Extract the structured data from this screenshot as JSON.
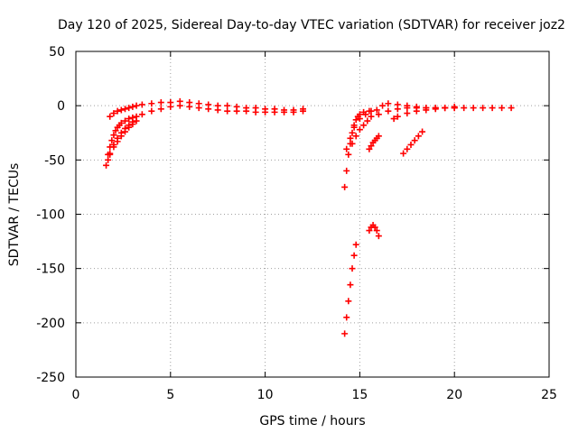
{
  "chart_data": {
    "type": "scatter",
    "title": "Day 120 of 2025, Sidereal Day-to-day VTEC variation (SDTVAR) for receiver joz2",
    "xlabel": "GPS time / hours",
    "ylabel": "SDTVAR / TECUs",
    "xlim": [
      0,
      25
    ],
    "ylim": [
      -250,
      50
    ],
    "xticks": [
      0,
      5,
      10,
      15,
      20,
      25
    ],
    "yticks": [
      -250,
      -200,
      -150,
      -100,
      -50,
      0,
      50
    ],
    "xtick_labels": [
      "0",
      "5",
      "10",
      "15",
      "20",
      "25"
    ],
    "ytick_labels": [
      "-250",
      "-200",
      "-150",
      "-100",
      "-50",
      "0",
      "50"
    ],
    "grid": true,
    "marker": "plus",
    "color": "#ff0000",
    "series": [
      {
        "x": [
          1.6,
          1.7,
          1.8,
          1.9,
          2.0,
          2.1,
          2.2,
          2.3,
          2.4,
          2.6,
          2.8,
          3.0,
          3.2,
          3.5,
          4.0,
          4.5,
          5.0,
          5.5,
          6.0,
          6.5,
          7.0,
          7.5,
          8.0,
          8.5,
          9.0,
          9.5,
          10.0,
          10.5,
          11.0,
          11.5,
          12.0
        ],
        "y": [
          -55,
          -45,
          -38,
          -32,
          -27,
          -23,
          -20,
          -18,
          -16,
          -14,
          -12,
          -11,
          -10,
          -8,
          -5,
          -3,
          -1,
          0,
          -1,
          -2,
          -3,
          -4,
          -5,
          -5,
          -5,
          -6,
          -6,
          -6,
          -6,
          -6,
          -5
        ]
      },
      {
        "x": [
          1.7,
          1.8,
          2.0,
          2.2,
          2.4,
          2.6,
          2.8,
          3.0
        ],
        "y": [
          -50,
          -44,
          -36,
          -30,
          -25,
          -21,
          -18,
          -15
        ]
      },
      {
        "x": [
          1.8,
          2.0,
          2.2,
          2.4,
          2.6,
          2.8,
          3.0,
          3.2
        ],
        "y": [
          -45,
          -38,
          -33,
          -28,
          -24,
          -20,
          -17,
          -14
        ]
      },
      {
        "x": [
          1.8,
          2.0,
          2.2,
          2.4,
          2.6,
          2.8,
          3.0,
          3.2,
          3.5,
          4.0,
          4.5,
          5.0,
          5.5,
          6.0,
          6.5,
          7.0,
          7.5,
          8.0,
          8.5,
          9.0,
          9.5,
          10.0,
          10.5,
          11.0,
          11.5,
          12.0
        ],
        "y": [
          -10,
          -7,
          -5,
          -4,
          -3,
          -2,
          -1,
          0,
          1,
          2,
          3,
          3,
          4,
          3,
          2,
          1,
          0,
          0,
          -1,
          -2,
          -2,
          -3,
          -3,
          -4,
          -4,
          -3
        ]
      },
      {
        "x": [
          14.2,
          14.3,
          14.4,
          14.5,
          14.6,
          14.7,
          14.8,
          14.9,
          15.0,
          15.2,
          15.5
        ],
        "y": [
          -75,
          -60,
          -45,
          -35,
          -25,
          -18,
          -13,
          -10,
          -8,
          -6,
          -5
        ]
      },
      {
        "x": [
          14.2,
          14.3,
          14.4,
          14.5,
          14.6,
          14.7,
          14.8
        ],
        "y": [
          -210,
          -195,
          -180,
          -165,
          -150,
          -138,
          -128
        ]
      },
      {
        "x": [
          14.3,
          14.5,
          14.7,
          15.0,
          15.3,
          15.6,
          15.9
        ],
        "y": [
          -40,
          -30,
          -20,
          -12,
          -8,
          -5,
          -4
        ]
      },
      {
        "x": [
          14.6,
          14.8,
          15.0,
          15.2,
          15.4,
          15.6
        ],
        "y": [
          -35,
          -28,
          -22,
          -18,
          -14,
          -10
        ]
      },
      {
        "x": [
          15.5,
          15.6,
          15.7,
          15.8,
          15.9,
          16.0
        ],
        "y": [
          -40,
          -37,
          -34,
          -32,
          -30,
          -28
        ]
      },
      {
        "x": [
          15.5,
          15.6,
          15.7,
          15.8,
          15.9,
          16.0
        ],
        "y": [
          -115,
          -112,
          -110,
          -112,
          -115,
          -120
        ]
      },
      {
        "x": [
          16.0,
          16.5,
          17.0,
          17.5,
          18.0,
          18.5,
          19.0,
          19.5,
          20.0,
          20.5,
          21.0,
          21.5,
          22.0,
          22.5,
          23.0
        ],
        "y": [
          -8,
          -5,
          -3,
          -2,
          -2,
          -2,
          -2,
          -2,
          -1,
          -2,
          -2,
          -2,
          -2,
          -2,
          -2
        ]
      },
      {
        "x": [
          16.2,
          16.5,
          17.0,
          17.5,
          18.0,
          18.5,
          19.0,
          19.5,
          20.0
        ],
        "y": [
          0,
          2,
          1,
          0,
          -1,
          -2,
          -2,
          -2,
          -2
        ]
      },
      {
        "x": [
          16.8,
          17.0,
          17.5,
          18.0,
          18.5,
          19.0,
          19.5,
          20.0
        ],
        "y": [
          -12,
          -10,
          -7,
          -5,
          -4,
          -3,
          -2,
          -2
        ]
      },
      {
        "x": [
          17.3,
          17.5,
          17.7,
          17.9,
          18.1,
          18.3
        ],
        "y": [
          -44,
          -40,
          -36,
          -32,
          -28,
          -24
        ]
      }
    ]
  }
}
